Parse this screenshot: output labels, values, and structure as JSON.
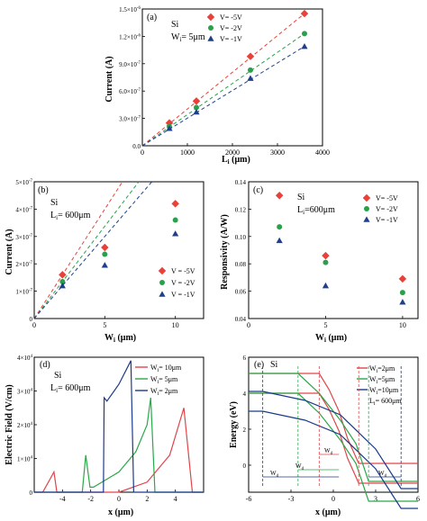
{
  "panels": [
    {
      "id": "a",
      "tag": "(a)",
      "material": "Si",
      "param_label": "W",
      "param_sub": "i",
      "param_value": "= 5μm",
      "xlabel_main": "L",
      "xlabel_sub": "i",
      "xlabel_rest": " (μm)",
      "ylabel": "Current (A)",
      "xlim": [
        0,
        4000
      ],
      "ylim": [
        0,
        1.5e-06
      ],
      "xticks": [
        "0",
        "1000",
        "2000",
        "3000",
        "4000"
      ],
      "yticks": [
        {
          "base": "0.0",
          "exp": ""
        },
        {
          "base": "3.0×10",
          "exp": "-7"
        },
        {
          "base": "6.0×10",
          "exp": "-7"
        },
        {
          "base": "9.0×10",
          "exp": "-7"
        },
        {
          "base": "1.2×10",
          "exp": "-6"
        },
        {
          "base": "1.5×10",
          "exp": "-6"
        }
      ],
      "legend": [
        "V= -5V",
        "V= -2V",
        "V= -1V"
      ]
    },
    {
      "id": "b",
      "tag": "(b)",
      "material": "Si",
      "param_label": "L",
      "param_sub": "i",
      "param_value": "= 600μm",
      "xlabel_main": "W",
      "xlabel_sub": "i",
      "xlabel_rest": " (μm)",
      "ylabel": "Current (A)",
      "xticks": [
        "0",
        "5",
        "10"
      ],
      "yticks": [
        {
          "base": "0",
          "exp": ""
        },
        {
          "base": "1×10",
          "exp": "-7"
        },
        {
          "base": "2×10",
          "exp": "-7"
        },
        {
          "base": "3×10",
          "exp": "-7"
        },
        {
          "base": "4×10",
          "exp": "-7"
        },
        {
          "base": "5×10",
          "exp": "-7"
        }
      ],
      "legend": [
        "V = -5V",
        "V = -2V",
        "V = -1V"
      ]
    },
    {
      "id": "c",
      "tag": "(c)",
      "material": "Si",
      "param_label": "L",
      "param_sub": "i",
      "param_value": "=600μm",
      "xlabel_main": "W",
      "xlabel_sub": "i",
      "xlabel_rest": " (μm)",
      "ylabel": "Responsivity (A/W)",
      "xticks": [
        "0",
        "5",
        "10"
      ],
      "yticks": [
        "0.04",
        "0.06",
        "0.08",
        "0.10",
        "0.12",
        "0.14"
      ],
      "legend": [
        "V= -5V",
        "V= -2V",
        "V= -1V"
      ]
    },
    {
      "id": "d",
      "tag": "(d)",
      "material": "Si",
      "param_label": "L",
      "param_sub": "i",
      "param_value": "= 600μm",
      "xlabel_main": "x (μm)",
      "ylabel": "Electric Field (V/cm)",
      "xticks": [
        "-4",
        "-2",
        "0",
        "2",
        "4"
      ],
      "yticks": [
        {
          "base": "0",
          "exp": ""
        },
        {
          "base": "1×10",
          "exp": "4"
        },
        {
          "base": "2×10",
          "exp": "4"
        },
        {
          "base": "3×10",
          "exp": "4"
        },
        {
          "base": "4×10",
          "exp": "4"
        }
      ],
      "legend": [
        {
          "main": "W",
          "sub": "i",
          "rest": "= 10μm"
        },
        {
          "main": "W",
          "sub": "i",
          "rest": "= 5μm"
        },
        {
          "main": "W",
          "sub": "i",
          "rest": "= 2μm"
        }
      ]
    },
    {
      "id": "e",
      "tag": "(e)",
      "material": "Si",
      "xlabel_main": "x (μm)",
      "ylabel": "Energy (eV)",
      "xticks": [
        "-6",
        "-3",
        "0",
        "3",
        "6"
      ],
      "yticks": [
        "0",
        "2",
        "4",
        "6"
      ],
      "legend": [
        {
          "main": "W",
          "sub": "i",
          "rest": "=2μm"
        },
        {
          "main": "W",
          "sub": "i",
          "rest": "=5μm"
        },
        {
          "main": "W",
          "sub": "i",
          "rest": "=10μm"
        },
        {
          "main": "L",
          "sub": "i",
          "rest": "= 600μm"
        }
      ],
      "width_labels": [
        {
          "main": "W",
          "sub": "d"
        },
        {
          "main": "W",
          "sub": "d"
        },
        {
          "main": "W",
          "sub": "d"
        },
        {
          "main": "W",
          "sub": "d"
        }
      ]
    }
  ],
  "colors": {
    "v5": "#e8413a",
    "v2": "#27a24a",
    "v1": "#1f3f8c",
    "w10": "#e0454a",
    "w5": "#2aa84a",
    "w2": "#1a3a8a"
  },
  "chart_data": [
    {
      "panel": "a",
      "type": "scatter",
      "xlabel": "Li (μm)",
      "ylabel": "Current (A)",
      "xlim": [
        0,
        4000
      ],
      "ylim": [
        0,
        1.5e-06
      ],
      "x": [
        600,
        1200,
        2400,
        3600
      ],
      "series": [
        {
          "name": "V= -5V",
          "values": [
            2.5e-07,
            4.9e-07,
            9.8e-07,
            1.45e-06
          ]
        },
        {
          "name": "V= -2V",
          "values": [
            2.1e-07,
            4.2e-07,
            8.3e-07,
            1.23e-06
          ]
        },
        {
          "name": "V= -1V",
          "values": [
            1.9e-07,
            3.7e-07,
            7.4e-07,
            1.09e-06
          ]
        }
      ],
      "fit_lines": "dashed linear fits through origin"
    },
    {
      "panel": "b",
      "type": "scatter",
      "xlabel": "Wi (μm)",
      "ylabel": "Current (A)",
      "xlim": [
        0,
        12
      ],
      "ylim": [
        0,
        5e-07
      ],
      "x": [
        2,
        5,
        10
      ],
      "series": [
        {
          "name": "V = -5V",
          "values": [
            1.6e-07,
            2.6e-07,
            4.2e-07
          ]
        },
        {
          "name": "V = -2V",
          "values": [
            1.35e-07,
            2.35e-07,
            3.6e-07
          ]
        },
        {
          "name": "V = -1V",
          "values": [
            1.2e-07,
            1.95e-07,
            3.1e-07
          ]
        }
      ],
      "fit_lines": "dashed linear lines from origin"
    },
    {
      "panel": "c",
      "type": "scatter",
      "xlabel": "Wi (μm)",
      "ylabel": "Responsivity (A/W)",
      "xlim": [
        0,
        11
      ],
      "ylim": [
        0.04,
        0.14
      ],
      "x": [
        2,
        5,
        10
      ],
      "series": [
        {
          "name": "V= -5V",
          "values": [
            0.13,
            0.086,
            0.069
          ]
        },
        {
          "name": "V= -2V",
          "values": [
            0.107,
            0.081,
            0.059
          ]
        },
        {
          "name": "V= -1V",
          "values": [
            0.097,
            0.064,
            0.052
          ]
        }
      ]
    },
    {
      "panel": "d",
      "type": "line",
      "xlabel": "x (μm)",
      "ylabel": "Electric Field (V/cm)",
      "xlim": [
        -6,
        6
      ],
      "ylim": [
        0,
        40000.0
      ],
      "series": [
        {
          "name": "Wi= 10μm",
          "x": [
            -6.0,
            -5.4,
            -5.0,
            -4.6,
            -4.4,
            -2.0,
            0.0,
            2.0,
            3.6,
            4.6,
            5.2,
            6.0
          ],
          "values": [
            0,
            0,
            3000,
            6000,
            0,
            0,
            0,
            3000,
            11000,
            25000,
            0,
            0
          ]
        },
        {
          "name": "Wi= 5μm",
          "x": [
            -6.0,
            -2.6,
            -2.35,
            -2.05,
            -1.8,
            0.0,
            1.2,
            2.0,
            2.25,
            2.55,
            6.0
          ],
          "values": [
            0,
            0,
            11000,
            1500,
            1500,
            6000,
            12000,
            20000,
            28000,
            0,
            0
          ]
        },
        {
          "name": "Wi= 2μm",
          "x": [
            -6.0,
            -1.1,
            -1.05,
            -0.85,
            0.0,
            0.85,
            1.05,
            1.15,
            6.0
          ],
          "values": [
            0,
            0,
            28000,
            27000,
            32000,
            39000,
            0,
            0,
            0
          ]
        }
      ]
    },
    {
      "panel": "e",
      "type": "line",
      "xlabel": "x (μm)",
      "ylabel": "Energy (eV)",
      "xlim": [
        -6,
        6
      ],
      "ylim": [
        -1.5,
        6
      ],
      "series": [
        {
          "name": "Wi=2μm",
          "x": [
            -6,
            -1,
            -0.3,
            0.4,
            1,
            1.8,
            6
          ],
          "values": [
            5.1,
            5.1,
            4.2,
            3.0,
            1.5,
            0.1,
            0.1
          ]
        },
        {
          "name": "Wi=5μm",
          "x": [
            -6,
            -2.5,
            -1,
            0.5,
            1.6,
            2.5,
            6
          ],
          "values": [
            5.1,
            5.1,
            4.0,
            2.5,
            1.2,
            -0.9,
            -0.9
          ]
        },
        {
          "name": "Wi=10μm",
          "x": [
            -6,
            -5,
            -2,
            0.5,
            3,
            4.8,
            6
          ],
          "values": [
            4.1,
            4.1,
            3.6,
            2.8,
            0.9,
            -1.3,
            -1.3
          ]
        }
      ]
    }
  ]
}
